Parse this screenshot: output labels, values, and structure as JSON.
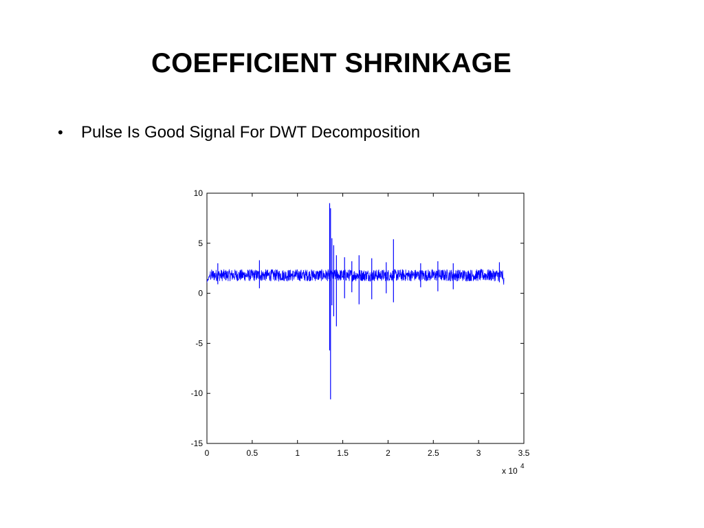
{
  "slide": {
    "title": "COEFFICIENT SHRINKAGE",
    "bullets": [
      {
        "symbol": "•",
        "text": "Pulse Is Good Signal For DWT Decomposition"
      }
    ]
  },
  "chart_data": {
    "type": "line",
    "title": "",
    "xlabel": "",
    "ylabel": "",
    "x_multiplier": {
      "prefix": "x 10",
      "exponent": "4"
    },
    "xlim": [
      0,
      35000
    ],
    "ylim": [
      -15,
      10
    ],
    "xticks": [
      {
        "value": 0,
        "label": "0"
      },
      {
        "value": 5000,
        "label": "0.5"
      },
      {
        "value": 10000,
        "label": "1"
      },
      {
        "value": 15000,
        "label": "1.5"
      },
      {
        "value": 20000,
        "label": "2"
      },
      {
        "value": 25000,
        "label": "2.5"
      },
      {
        "value": 30000,
        "label": "3"
      },
      {
        "value": 35000,
        "label": "3.5"
      }
    ],
    "yticks": [
      {
        "value": 10,
        "label": "10"
      },
      {
        "value": 5,
        "label": "5"
      },
      {
        "value": 0,
        "label": "0"
      },
      {
        "value": -5,
        "label": "-5"
      },
      {
        "value": -10,
        "label": "-10"
      },
      {
        "value": -15,
        "label": "-15"
      }
    ],
    "grid": false,
    "color": "#0000ff",
    "series": [
      {
        "x_range": [
          0,
          32800
        ],
        "baseline": 1.8,
        "noise_amplitude": 0.6,
        "spikes": [
          {
            "x": 1200,
            "max": 3.0,
            "min": 0.9
          },
          {
            "x": 5800,
            "max": 3.3,
            "min": 0.5
          },
          {
            "x": 13550,
            "max": 9.0,
            "min": -5.7
          },
          {
            "x": 13650,
            "max": 8.5,
            "min": -10.6
          },
          {
            "x": 13800,
            "max": 5.5,
            "min": -1.2
          },
          {
            "x": 14000,
            "max": 4.8,
            "min": -2.3
          },
          {
            "x": 14300,
            "max": 3.8,
            "min": -3.3
          },
          {
            "x": 15200,
            "max": 3.6,
            "min": -0.5
          },
          {
            "x": 16000,
            "max": 3.2,
            "min": 0.1
          },
          {
            "x": 16800,
            "max": 3.8,
            "min": -1.1
          },
          {
            "x": 18200,
            "max": 3.5,
            "min": -0.6
          },
          {
            "x": 19800,
            "max": 3.1,
            "min": 0.0
          },
          {
            "x": 20600,
            "max": 5.4,
            "min": -0.9
          },
          {
            "x": 23600,
            "max": 3.0,
            "min": 0.6
          },
          {
            "x": 25500,
            "max": 3.2,
            "min": 0.2
          },
          {
            "x": 27200,
            "max": 3.0,
            "min": 0.4
          },
          {
            "x": 32300,
            "max": 3.1,
            "min": 1.1
          }
        ]
      }
    ]
  }
}
